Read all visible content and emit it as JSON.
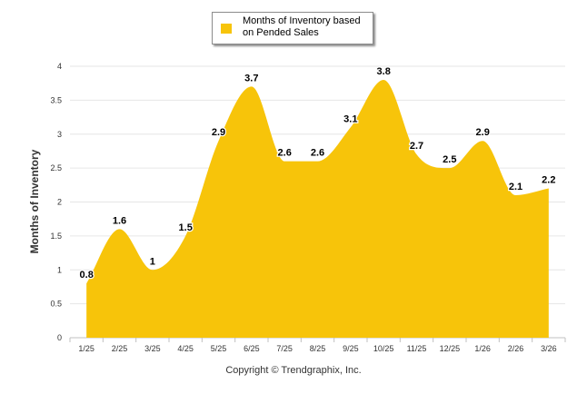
{
  "chart_data": {
    "type": "area",
    "categories": [
      "1/25",
      "2/25",
      "3/25",
      "4/25",
      "5/25",
      "6/25",
      "7/25",
      "8/25",
      "9/25",
      "10/25",
      "11/25",
      "12/25",
      "1/26",
      "2/26",
      "3/26"
    ],
    "series": [
      {
        "name": "Months of Inventory based on Pended Sales",
        "values": [
          0.8,
          1.6,
          1,
          1.5,
          2.9,
          3.7,
          2.6,
          2.6,
          3.1,
          3.8,
          2.7,
          2.5,
          2.9,
          2.1,
          2.2
        ],
        "labels": [
          "0.8",
          "1.6",
          "1",
          "1.5",
          "2.9",
          "3.7",
          "2.6",
          "2.6",
          "3.1",
          "3.8",
          "2.7",
          "2.5",
          "2.9",
          "2.1",
          "2.2"
        ]
      }
    ],
    "ylabel": "Months of Inventory",
    "xlabel": "",
    "ylim": [
      0,
      4
    ],
    "yticks": [
      "0",
      "0.5",
      "1",
      "1.5",
      "2",
      "2.5",
      "3",
      "3.5",
      "4"
    ],
    "grid": true,
    "legend_position": "top-center",
    "color": "#F7C40A"
  },
  "legend": {
    "label": "Months of Inventory based on Pended Sales"
  },
  "footer": {
    "copyright": "Copyright © Trendgraphix, Inc."
  }
}
